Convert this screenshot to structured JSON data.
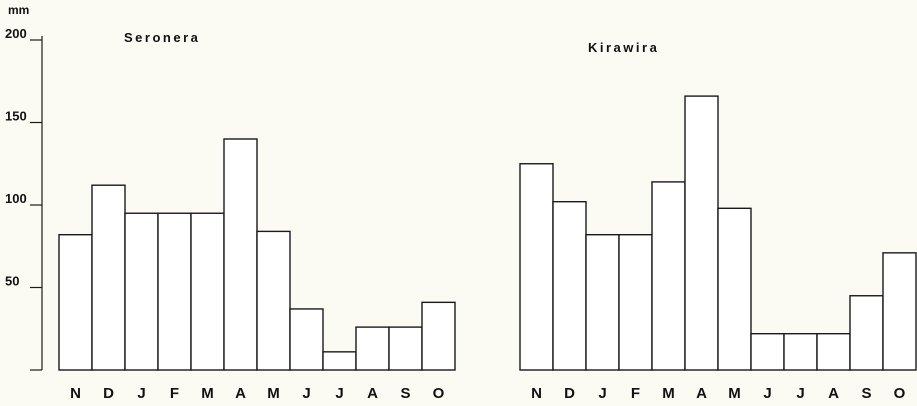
{
  "y_axis": {
    "unit": "mm",
    "ticks": [
      {
        "value": 200,
        "label": "200"
      },
      {
        "value": 150,
        "label": "150"
      },
      {
        "value": 100,
        "label": "100"
      },
      {
        "value": 50,
        "label": "50"
      }
    ]
  },
  "chart_data": [
    {
      "type": "bar",
      "title": "Seronera",
      "categories": [
        "N",
        "D",
        "J",
        "F",
        "M",
        "A",
        "M",
        "J",
        "J",
        "A",
        "S",
        "O"
      ],
      "values": [
        82,
        112,
        95,
        95,
        95,
        140,
        84,
        37,
        11,
        26,
        26,
        41
      ],
      "xlabel": "",
      "ylabel": "mm",
      "ylim": [
        0,
        200
      ],
      "grid": false
    },
    {
      "type": "bar",
      "title": "Kirawira",
      "categories": [
        "N",
        "D",
        "J",
        "F",
        "M",
        "A",
        "M",
        "J",
        "J",
        "A",
        "S",
        "O"
      ],
      "values": [
        125,
        102,
        82,
        82,
        114,
        166,
        98,
        22,
        22,
        22,
        45,
        71
      ],
      "xlabel": "",
      "ylabel": "mm",
      "ylim": [
        0,
        200
      ],
      "grid": false
    }
  ]
}
